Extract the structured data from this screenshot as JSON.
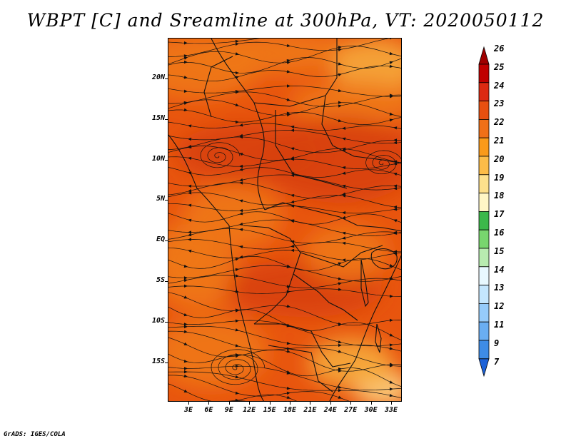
{
  "title": "WBPT [C] and Sreamline at 300hPa, VT: 2020050112",
  "footer": "GrADS: IGES/COLA",
  "map": {
    "latitude_labels": [
      "20N",
      "15N",
      "10N",
      "5N",
      "EQ",
      "5S",
      "10S",
      "15S"
    ],
    "longitude_labels": [
      "3E",
      "6E",
      "9E",
      "12E",
      "15E",
      "18E",
      "21E",
      "24E",
      "27E",
      "30E",
      "33E"
    ],
    "fill_colors": {
      "base": "#e8550e",
      "dark": "#d8410f",
      "warm": "#f07818",
      "light": "#f6a83c",
      "pale": "#fdd98a"
    }
  },
  "legend": {
    "labels": [
      "26",
      "25",
      "24",
      "23",
      "22",
      "21",
      "20",
      "19",
      "18",
      "17",
      "16",
      "15",
      "14",
      "13",
      "12",
      "11",
      "9",
      "7"
    ],
    "colors": [
      "#a00000",
      "#c00000",
      "#dc2a12",
      "#e85010",
      "#f07018",
      "#fa9a1a",
      "#fcbc48",
      "#fde08c",
      "#fff6c6",
      "#3cb84a",
      "#78d66e",
      "#b8ecb0",
      "#e8f8ff",
      "#c4e6fe",
      "#96cbfa",
      "#6aaef2",
      "#3e8ce6",
      "#1c62d8"
    ]
  }
}
